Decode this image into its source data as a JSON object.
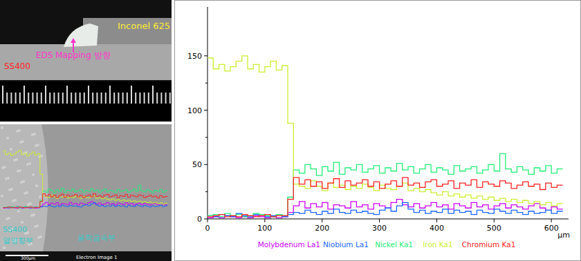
{
  "chart_data": {
    "type": "line",
    "line_style": "step",
    "x_label": "µm",
    "legend": "bottom",
    "grid": false,
    "xlim": [
      0,
      630
    ],
    "xticks": [
      0,
      100,
      200,
      300,
      400,
      500,
      600
    ],
    "ylim": [
      0,
      195
    ],
    "yticks": [
      0,
      50,
      100,
      150
    ],
    "x": [
      0,
      10,
      20,
      30,
      40,
      50,
      60,
      70,
      80,
      90,
      100,
      110,
      120,
      130,
      140,
      150,
      160,
      170,
      180,
      190,
      200,
      210,
      220,
      230,
      240,
      250,
      260,
      270,
      280,
      290,
      300,
      310,
      320,
      330,
      340,
      350,
      360,
      370,
      380,
      390,
      400,
      410,
      420,
      430,
      440,
      450,
      460,
      470,
      480,
      490,
      500,
      510,
      520,
      530,
      540,
      550,
      560,
      570,
      580,
      590,
      600,
      610
    ],
    "series": [
      {
        "name": "Molybdenum La1",
        "color": "#cc00ff",
        "values": [
          1,
          2,
          1,
          3,
          2,
          1,
          2,
          1,
          3,
          2,
          1,
          2,
          1,
          2,
          6,
          12,
          16,
          10,
          14,
          11,
          15,
          9,
          13,
          12,
          10,
          16,
          11,
          13,
          9,
          14,
          12,
          10,
          15,
          18,
          13,
          11,
          14,
          10,
          12,
          15,
          11,
          13,
          9,
          14,
          12,
          10,
          15,
          11,
          13,
          9,
          12,
          14,
          10,
          13,
          11,
          9,
          12,
          14,
          10,
          8,
          11,
          9
        ]
      },
      {
        "name": "Niobium La1",
        "color": "#1a66ff",
        "values": [
          3,
          2,
          4,
          3,
          2,
          5,
          3,
          2,
          4,
          3,
          2,
          3,
          4,
          2,
          4,
          6,
          5,
          8,
          6,
          4,
          7,
          5,
          9,
          6,
          5,
          8,
          6,
          7,
          5,
          4,
          8,
          10,
          7,
          12,
          15,
          9,
          6,
          8,
          5,
          7,
          6,
          9,
          5,
          8,
          6,
          7,
          4,
          8,
          6,
          5,
          9,
          7,
          5,
          8,
          6,
          4,
          7,
          5,
          6,
          8,
          5,
          7
        ]
      },
      {
        "name": "Nickel Ka1",
        "color": "#22ee77",
        "values": [
          3,
          4,
          2,
          5,
          3,
          4,
          2,
          3,
          5,
          4,
          3,
          2,
          4,
          3,
          20,
          45,
          42,
          50,
          46,
          40,
          48,
          44,
          52,
          41,
          47,
          45,
          50,
          43,
          46,
          49,
          42,
          47,
          44,
          51,
          45,
          48,
          42,
          46,
          50,
          43,
          47,
          45,
          41,
          49,
          44,
          46,
          48,
          42,
          45,
          50,
          44,
          60,
          46,
          43,
          48,
          45,
          41,
          47,
          44,
          49,
          42,
          46
        ]
      },
      {
        "name": "Iron Ka1",
        "color": "#ccee33",
        "values": [
          148,
          138,
          142,
          136,
          140,
          145,
          150,
          138,
          142,
          135,
          140,
          145,
          137,
          141,
          88,
          32,
          30,
          28,
          35,
          30,
          26,
          33,
          29,
          31,
          27,
          30,
          28,
          32,
          29,
          26,
          31,
          28,
          27,
          30,
          33,
          26,
          28,
          25,
          27,
          24,
          22,
          25,
          21,
          23,
          20,
          22,
          19,
          21,
          18,
          20,
          17,
          19,
          16,
          18,
          15,
          17,
          14,
          16,
          13,
          15,
          12,
          14
        ]
      },
      {
        "name": "Chromium Ka1",
        "color": "#ff2222",
        "values": [
          2,
          3,
          4,
          2,
          3,
          2,
          4,
          3,
          2,
          3,
          4,
          2,
          3,
          3,
          18,
          38,
          32,
          36,
          30,
          34,
          28,
          33,
          37,
          29,
          35,
          31,
          33,
          36,
          30,
          34,
          28,
          32,
          35,
          30,
          38,
          31,
          33,
          29,
          34,
          36,
          30,
          32,
          35,
          28,
          33,
          31,
          36,
          29,
          34,
          32,
          30,
          35,
          33,
          28,
          31,
          34,
          30,
          32,
          27,
          33,
          29,
          31
        ]
      }
    ]
  },
  "photos": {
    "macro": {
      "labels": [
        {
          "text": "Inconel 625",
          "color": "#ffee33"
        },
        {
          "text": "EDS Mapping 방향",
          "color": "#ff33cc"
        },
        {
          "text": "SS400",
          "color": "#ff2222"
        }
      ]
    },
    "sem": {
      "labels": [
        {
          "text": "SS400",
          "color": "#33cccc"
        },
        {
          "text": "열영향부",
          "color": "#33cccc"
        },
        {
          "text": "용착금속부",
          "color": "#33cccc"
        }
      ],
      "scale_bar": "300µm",
      "caption": "Electron Image 1"
    }
  }
}
